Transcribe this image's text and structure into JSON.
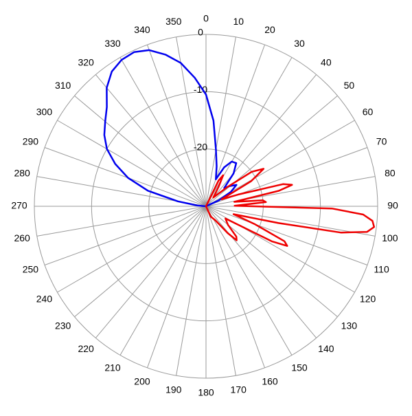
{
  "chart_data": {
    "type": "polar",
    "rlim": [
      -30,
      0
    ],
    "rticks": [
      0,
      -10,
      -20
    ],
    "thetaticks": [
      0,
      10,
      20,
      30,
      40,
      50,
      60,
      70,
      80,
      90,
      100,
      110,
      120,
      130,
      140,
      150,
      160,
      170,
      180,
      190,
      200,
      210,
      220,
      230,
      240,
      250,
      260,
      270,
      280,
      290,
      300,
      310,
      320,
      330,
      340,
      350
    ],
    "direction": "clockwise",
    "zero": "top",
    "grid": true,
    "series": [
      {
        "color": "#0000ee",
        "theta": [
          270,
          275,
          280,
          285,
          290,
          295,
          300,
          305,
          310,
          315,
          320,
          325,
          330,
          335,
          340,
          345,
          350,
          355,
          0,
          5,
          10,
          15,
          20,
          25,
          30,
          35,
          40,
          45,
          50,
          55,
          60,
          65,
          70
        ],
        "values": [
          -30,
          -28.5,
          -25,
          -19.5,
          -15.5,
          -12.5,
          -10,
          -8.3,
          -7,
          -5.5,
          -3,
          -1.3,
          -0.5,
          -0.3,
          -1,
          -2.6,
          -4.6,
          -7.5,
          -10.5,
          -15,
          -20,
          -22.8,
          -25,
          -22.5,
          -21,
          -20.8,
          -22.5,
          -25.5,
          -24.5,
          -23.5,
          -25,
          -27.5,
          -30
        ]
      },
      {
        "color": "#ee0000",
        "theta": [
          20,
          26,
          29,
          33,
          40,
          48,
          53,
          57,
          61,
          66,
          70,
          74,
          76,
          78,
          81,
          84,
          86,
          88,
          89,
          91,
          93,
          95,
          97,
          99,
          101,
          103,
          106,
          110,
          114,
          116,
          118,
          122,
          130,
          135,
          138,
          141,
          146,
          155,
          165
        ],
        "values": [
          -30,
          -25,
          -23.8,
          -26,
          -28,
          -25,
          -20,
          -18,
          -21,
          -27,
          -24,
          -16,
          -14.5,
          -17,
          -25,
          -20,
          -19.5,
          -24,
          -25,
          -8,
          -2.5,
          -0.8,
          -0.4,
          -1.5,
          -6,
          -17,
          -25,
          -21,
          -15,
          -14.2,
          -17,
          -26,
          -25,
          -22.5,
          -22,
          -24,
          -27,
          -28,
          -30
        ]
      }
    ]
  }
}
